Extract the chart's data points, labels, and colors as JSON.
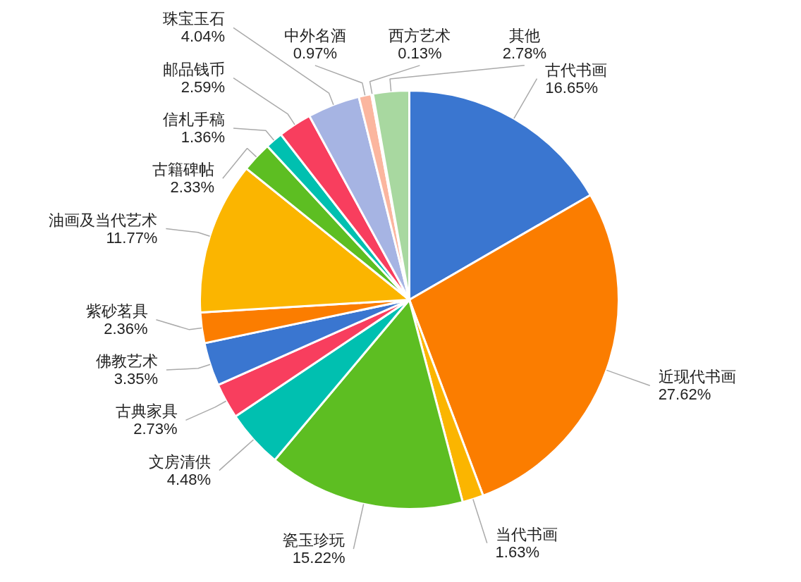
{
  "chart_data": {
    "type": "pie",
    "categories": [
      "古代书画",
      "近现代书画",
      "当代书画",
      "瓷玉珍玩",
      "文房清供",
      "古典家具",
      "佛教艺术",
      "紫砂茗具",
      "油画及当代艺术",
      "古籍碑帖",
      "信札手稿",
      "邮品钱币",
      "珠宝玉石",
      "中外名酒",
      "西方艺术",
      "其他"
    ],
    "values": [
      16.65,
      27.62,
      1.63,
      15.22,
      4.48,
      2.73,
      3.35,
      2.36,
      11.77,
      2.33,
      1.36,
      2.59,
      4.04,
      0.97,
      0.13,
      2.78
    ],
    "value_labels": [
      "16.65%",
      "27.62%",
      "1.63%",
      "15.22%",
      "4.48%",
      "2.73%",
      "3.35%",
      "2.36%",
      "11.77%",
      "2.33%",
      "1.36%",
      "2.59%",
      "4.04%",
      "0.97%",
      "0.13%",
      "2.78%"
    ],
    "colors": [
      "#3a76d0",
      "#fb7d00",
      "#fbb500",
      "#5dbe22",
      "#00c0b0",
      "#f83e5e",
      "#3a76d0",
      "#fb7d00",
      "#fbb500",
      "#5dbe22",
      "#00c0b0",
      "#f83e5e",
      "#a6b4e3",
      "#fbb69f",
      "#f5e6a0",
      "#a8d8a0"
    ]
  }
}
